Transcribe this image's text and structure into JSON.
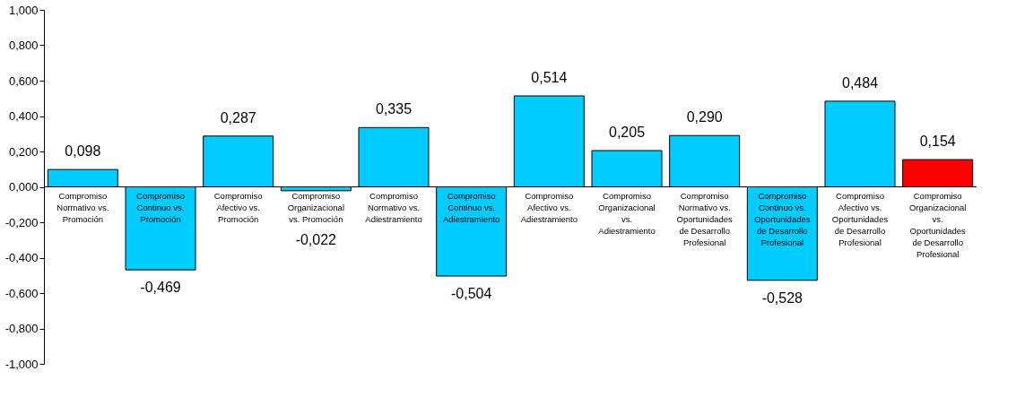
{
  "chart_data": {
    "type": "bar",
    "categories": [
      "Compromiso\nNormativo vs.\nPromoción",
      "Compromiso\nContinuo vs.\nPromoción",
      "Compromiso\nAfectivo vs.\nPromoción",
      "Compromiso\nOrganizacional\nvs. Promoción",
      "Compromiso\nNormativo vs.\nAdiestramiento",
      "Compromiso\nContinuo vs.\nAdiestramiento",
      "Compromiso\nAfectivo vs.\nAdiestramiento",
      "Compromiso\nOrganizacional\nvs.\nAdiestramiento",
      "Compromiso\nNormativo vs.\nOportunidades\nde Desarrollo\nProfesional",
      "Compromiso\nContinuo vs.\nOportunidades\nde Desarrollo\nProfesional",
      "Compromiso\nAfectivo vs.\nOportunidades\nde Desarrollo\nProfesional",
      "Compromiso\nOrganizacional\nvs.\nOportunidades\nde Desarrollo\nProfesional"
    ],
    "values": [
      0.098,
      -0.469,
      0.287,
      -0.022,
      0.335,
      -0.504,
      0.514,
      0.205,
      0.29,
      -0.528,
      0.484,
      0.154
    ],
    "value_labels": [
      "0,098",
      "-0,469",
      "0,287",
      "-0,022",
      "0,335",
      "-0,504",
      "0,514",
      "0,205",
      "0,290",
      "-0,528",
      "0,484",
      "0,154"
    ],
    "colors": [
      "#00ccff",
      "#00ccff",
      "#00ccff",
      "#00ccff",
      "#00ccff",
      "#00ccff",
      "#00ccff",
      "#00ccff",
      "#00ccff",
      "#00ccff",
      "#00ccff",
      "#ff0000"
    ],
    "ylim": [
      -1,
      1
    ],
    "yticks": [
      {
        "value": -1,
        "label": "-1,000"
      },
      {
        "value": -0.8,
        "label": "-0,800"
      },
      {
        "value": -0.6,
        "label": "-0,600"
      },
      {
        "value": -0.4,
        "label": "-0,400"
      },
      {
        "value": -0.2,
        "label": "-0,200"
      },
      {
        "value": 0,
        "label": "0,000"
      },
      {
        "value": 0.2,
        "label": "0,200"
      },
      {
        "value": 0.4,
        "label": "0,400"
      },
      {
        "value": 0.6,
        "label": "0,600"
      },
      {
        "value": 0.8,
        "label": "0,800"
      },
      {
        "value": 1,
        "label": "1,000"
      }
    ],
    "grid": false
  }
}
